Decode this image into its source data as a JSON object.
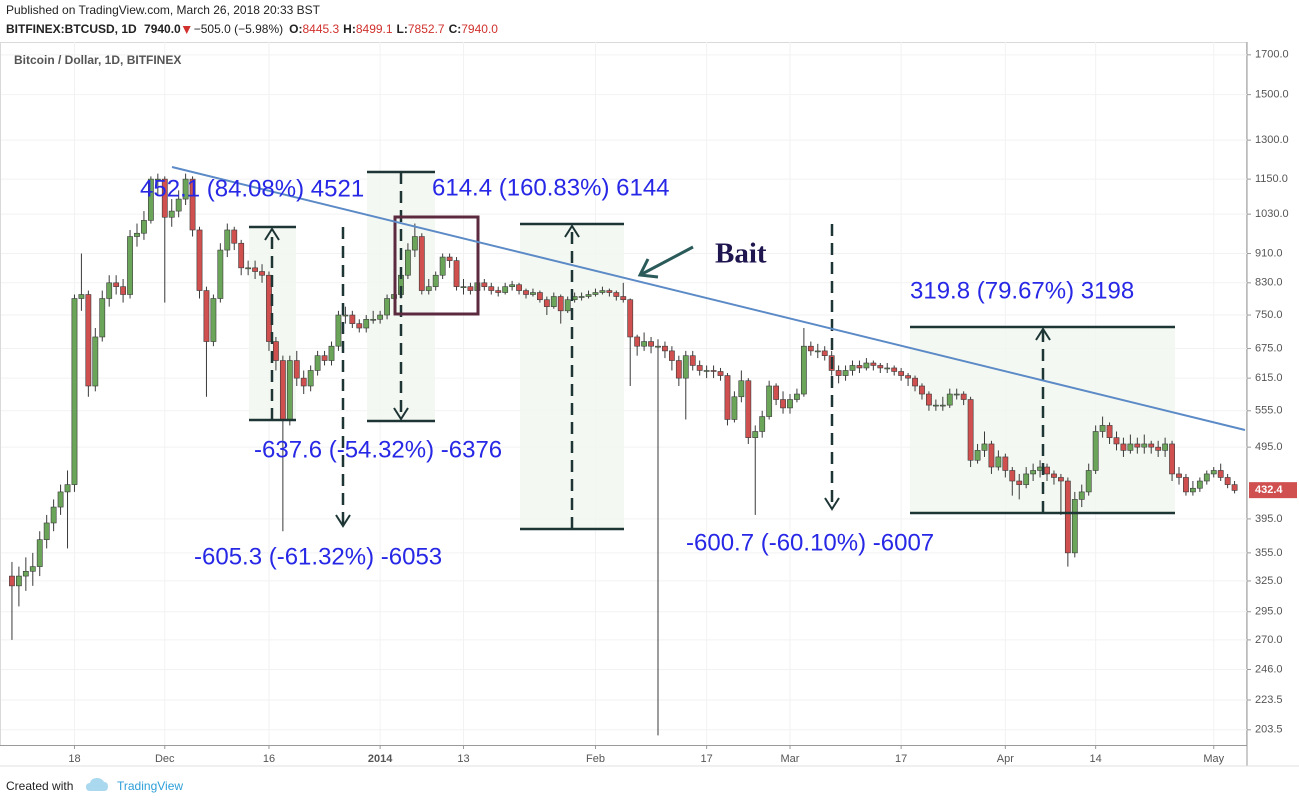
{
  "header": {
    "published": "Published on TradingView.com, March 26, 2018 20:33 BST",
    "symbol": "BITFINEX:BTCUSD, 1D",
    "price": "7940.0",
    "change": "−505.0 (−5.98%)",
    "ohlc": [
      [
        "O:",
        "8445.3"
      ],
      [
        "H:",
        "8499.1"
      ],
      [
        "L:",
        "7852.7"
      ],
      [
        "C:",
        "7940.0"
      ]
    ]
  },
  "footer": {
    "created": "Created with",
    "brand": "TradingView"
  },
  "chart_data": {
    "type": "candlestick",
    "legend": "Bitcoin / Dollar, 1D, BITFINEX",
    "log_scale": true,
    "grid": true,
    "up_color": "#6ba55a",
    "down_color": "#d05050",
    "wick_color": "#3a3a3a",
    "ylim": [
      194,
      1770
    ],
    "xlim": [
      -1,
      177.5
    ],
    "yticks": [
      {
        "value": 1700,
        "label": "1700.0"
      },
      {
        "value": 1500,
        "label": "1500.0"
      },
      {
        "value": 1300,
        "label": "1300.0"
      },
      {
        "value": 1150,
        "label": "1150.0"
      },
      {
        "value": 1030,
        "label": "1030.0"
      },
      {
        "value": 910,
        "label": "910.0"
      },
      {
        "value": 830,
        "label": "830.0"
      },
      {
        "value": 750,
        "label": "750.0"
      },
      {
        "value": 675,
        "label": "675.0"
      },
      {
        "value": 615,
        "label": "615.0"
      },
      {
        "value": 555,
        "label": "555.0"
      },
      {
        "value": 495,
        "label": "495.0"
      },
      {
        "value": 395,
        "label": "395.0"
      },
      {
        "value": 355,
        "label": "355.0"
      },
      {
        "value": 325,
        "label": "325.0"
      },
      {
        "value": 295,
        "label": "295.0"
      },
      {
        "value": 270,
        "label": "270.0"
      },
      {
        "value": 246,
        "label": "246.0"
      },
      223.5,
      203.5
    ],
    "xticks": [
      {
        "value": 9,
        "label": "18"
      },
      {
        "value": 22,
        "label": "Dec"
      },
      {
        "value": 37,
        "label": "16"
      },
      {
        "value": 53,
        "label": "2014",
        "bold": true
      },
      {
        "value": 65,
        "label": "13"
      },
      {
        "value": 84,
        "label": "Feb"
      },
      {
        "value": 100,
        "label": "17"
      },
      {
        "value": 112,
        "label": "Mar"
      },
      {
        "value": 128,
        "label": "17"
      },
      {
        "value": 143,
        "label": "Apr"
      },
      {
        "value": 156,
        "label": "14"
      },
      {
        "value": 173,
        "label": "May"
      }
    ],
    "last_price": 432.4,
    "annotations": [
      "452.1 (84.08%) 4521",
      "614.4 (160.83%) 6144",
      "-637.6 (-54.32%) -6376",
      "-605.3 (-61.32%) -6053",
      "-600.7 (-60.10%) -6007",
      "319.8 (79.67%) 3198",
      "Bait"
    ],
    "candles": [
      [
        330,
        345,
        270,
        320
      ],
      [
        320,
        340,
        300,
        330
      ],
      [
        330,
        350,
        315,
        335
      ],
      [
        335,
        355,
        320,
        340
      ],
      [
        340,
        380,
        330,
        370
      ],
      [
        370,
        400,
        360,
        390
      ],
      [
        390,
        420,
        380,
        410
      ],
      [
        410,
        440,
        400,
        430
      ],
      [
        430,
        460,
        360,
        440
      ],
      [
        440,
        800,
        430,
        790
      ],
      [
        790,
        910,
        760,
        800
      ],
      [
        800,
        810,
        580,
        600
      ],
      [
        600,
        720,
        590,
        700
      ],
      [
        700,
        810,
        690,
        790
      ],
      [
        790,
        850,
        770,
        830
      ],
      [
        830,
        850,
        800,
        820
      ],
      [
        820,
        840,
        780,
        800
      ],
      [
        800,
        980,
        790,
        960
      ],
      [
        960,
        1000,
        930,
        970
      ],
      [
        970,
        1040,
        950,
        1010
      ],
      [
        1010,
        1160,
        1000,
        1150
      ],
      [
        1150,
        1170,
        1090,
        1150
      ],
      [
        1150,
        1160,
        780,
        1020
      ],
      [
        1020,
        1080,
        990,
        1040
      ],
      [
        1040,
        1110,
        1020,
        1080
      ],
      [
        1080,
        1170,
        1060,
        1150
      ],
      [
        1150,
        1160,
        960,
        980
      ],
      [
        980,
        990,
        790,
        810
      ],
      [
        810,
        820,
        580,
        690
      ],
      [
        690,
        800,
        680,
        790
      ],
      [
        790,
        940,
        780,
        920
      ],
      [
        920,
        1000,
        900,
        980
      ],
      [
        980,
        990,
        920,
        940
      ],
      [
        940,
        950,
        850,
        870
      ],
      [
        870,
        890,
        850,
        870
      ],
      [
        870,
        890,
        840,
        860
      ],
      [
        860,
        880,
        830,
        850
      ],
      [
        850,
        860,
        670,
        690
      ],
      [
        690,
        700,
        630,
        650
      ],
      [
        650,
        660,
        380,
        540
      ],
      [
        540,
        660,
        530,
        650
      ],
      [
        650,
        670,
        600,
        615
      ],
      [
        615,
        630,
        585,
        600
      ],
      [
        600,
        640,
        590,
        630
      ],
      [
        630,
        670,
        620,
        660
      ],
      [
        660,
        670,
        640,
        650
      ],
      [
        650,
        690,
        640,
        680
      ],
      [
        680,
        760,
        670,
        750
      ],
      [
        750,
        770,
        730,
        750
      ],
      [
        750,
        760,
        720,
        730
      ],
      [
        730,
        740,
        710,
        720
      ],
      [
        720,
        750,
        710,
        740
      ],
      [
        740,
        760,
        730,
        740
      ],
      [
        740,
        760,
        730,
        750
      ],
      [
        750,
        800,
        740,
        790
      ],
      [
        790,
        820,
        780,
        800
      ],
      [
        800,
        860,
        790,
        850
      ],
      [
        850,
        940,
        840,
        920
      ],
      [
        920,
        1000,
        900,
        960
      ],
      [
        960,
        970,
        800,
        810
      ],
      [
        810,
        840,
        800,
        820
      ],
      [
        820,
        860,
        810,
        850
      ],
      [
        850,
        910,
        840,
        900
      ],
      [
        900,
        910,
        870,
        890
      ],
      [
        890,
        900,
        810,
        820
      ],
      [
        820,
        840,
        800,
        820
      ],
      [
        820,
        830,
        800,
        810
      ],
      [
        810,
        840,
        800,
        830
      ],
      [
        830,
        840,
        810,
        820
      ],
      [
        820,
        830,
        800,
        810
      ],
      [
        810,
        820,
        795,
        805
      ],
      [
        805,
        830,
        800,
        820
      ],
      [
        820,
        835,
        810,
        825
      ],
      [
        825,
        830,
        800,
        810
      ],
      [
        810,
        815,
        790,
        800
      ],
      [
        800,
        815,
        795,
        805
      ],
      [
        805,
        810,
        780,
        787
      ],
      [
        787,
        795,
        750,
        770
      ],
      [
        770,
        805,
        765,
        795
      ],
      [
        795,
        800,
        730,
        760
      ],
      [
        760,
        795,
        755,
        787
      ],
      [
        787,
        805,
        780,
        795
      ],
      [
        795,
        805,
        785,
        795
      ],
      [
        795,
        810,
        790,
        800
      ],
      [
        800,
        815,
        795,
        805
      ],
      [
        805,
        820,
        800,
        810
      ],
      [
        810,
        815,
        795,
        805
      ],
      [
        805,
        810,
        785,
        795
      ],
      [
        795,
        830,
        780,
        787
      ],
      [
        787,
        790,
        600,
        700
      ],
      [
        700,
        705,
        660,
        680
      ],
      [
        680,
        710,
        670,
        690
      ],
      [
        690,
        700,
        665,
        680
      ],
      [
        680,
        695,
        200,
        680
      ],
      [
        680,
        690,
        655,
        670
      ],
      [
        670,
        680,
        630,
        650
      ],
      [
        650,
        660,
        600,
        615
      ],
      [
        615,
        670,
        540,
        660
      ],
      [
        660,
        670,
        630,
        640
      ],
      [
        640,
        650,
        620,
        630
      ],
      [
        630,
        640,
        615,
        630
      ],
      [
        630,
        640,
        615,
        628
      ],
      [
        628,
        635,
        610,
        620
      ],
      [
        620,
        625,
        530,
        540
      ],
      [
        540,
        590,
        535,
        580
      ],
      [
        580,
        630,
        570,
        610
      ],
      [
        610,
        615,
        500,
        510
      ],
      [
        510,
        530,
        400,
        520
      ],
      [
        520,
        555,
        510,
        545
      ],
      [
        545,
        610,
        540,
        600
      ],
      [
        600,
        605,
        565,
        575
      ],
      [
        575,
        590,
        550,
        560
      ],
      [
        560,
        585,
        550,
        575
      ],
      [
        575,
        595,
        570,
        585
      ],
      [
        585,
        720,
        580,
        680
      ],
      [
        680,
        690,
        660,
        670
      ],
      [
        670,
        685,
        655,
        670
      ],
      [
        670,
        680,
        650,
        660
      ],
      [
        660,
        670,
        620,
        630
      ],
      [
        630,
        640,
        605,
        620
      ],
      [
        620,
        640,
        610,
        630
      ],
      [
        630,
        650,
        620,
        640
      ],
      [
        640,
        650,
        625,
        635
      ],
      [
        635,
        655,
        630,
        645
      ],
      [
        645,
        650,
        630,
        640
      ],
      [
        640,
        645,
        625,
        635
      ],
      [
        635,
        645,
        625,
        635
      ],
      [
        635,
        640,
        620,
        628
      ],
      [
        628,
        635,
        610,
        620
      ],
      [
        620,
        625,
        600,
        615
      ],
      [
        615,
        620,
        590,
        600
      ],
      [
        600,
        605,
        575,
        585
      ],
      [
        585,
        590,
        555,
        565
      ],
      [
        565,
        575,
        555,
        565
      ],
      [
        565,
        580,
        555,
        565
      ],
      [
        565,
        595,
        560,
        585
      ],
      [
        585,
        595,
        575,
        585
      ],
      [
        585,
        590,
        565,
        575
      ],
      [
        575,
        580,
        465,
        475
      ],
      [
        475,
        500,
        470,
        490
      ],
      [
        490,
        520,
        480,
        500
      ],
      [
        500,
        505,
        455,
        465
      ],
      [
        465,
        490,
        460,
        480
      ],
      [
        480,
        485,
        450,
        460
      ],
      [
        460,
        465,
        425,
        445
      ],
      [
        445,
        455,
        420,
        440
      ],
      [
        440,
        465,
        435,
        455
      ],
      [
        455,
        470,
        445,
        460
      ],
      [
        460,
        475,
        450,
        465
      ],
      [
        465,
        470,
        445,
        455
      ],
      [
        455,
        460,
        440,
        450
      ],
      [
        450,
        455,
        400,
        445
      ],
      [
        445,
        450,
        340,
        355
      ],
      [
        355,
        430,
        350,
        420
      ],
      [
        420,
        440,
        410,
        430
      ],
      [
        430,
        470,
        425,
        460
      ],
      [
        460,
        530,
        455,
        520
      ],
      [
        520,
        545,
        510,
        530
      ],
      [
        530,
        535,
        500,
        510
      ],
      [
        510,
        520,
        490,
        500
      ],
      [
        500,
        510,
        480,
        490
      ],
      [
        490,
        515,
        485,
        500
      ],
      [
        500,
        510,
        485,
        495
      ],
      [
        495,
        515,
        485,
        500
      ],
      [
        500,
        505,
        485,
        495
      ],
      [
        495,
        505,
        480,
        490
      ],
      [
        490,
        510,
        480,
        500
      ],
      [
        500,
        505,
        445,
        455
      ],
      [
        455,
        465,
        440,
        450
      ],
      [
        450,
        455,
        425,
        430
      ],
      [
        430,
        445,
        425,
        435
      ],
      [
        435,
        450,
        430,
        445
      ],
      [
        445,
        460,
        440,
        455
      ],
      [
        455,
        465,
        450,
        460
      ],
      [
        460,
        470,
        445,
        450
      ],
      [
        450,
        455,
        435,
        440
      ],
      [
        440,
        445,
        428,
        432
      ]
    ]
  }
}
